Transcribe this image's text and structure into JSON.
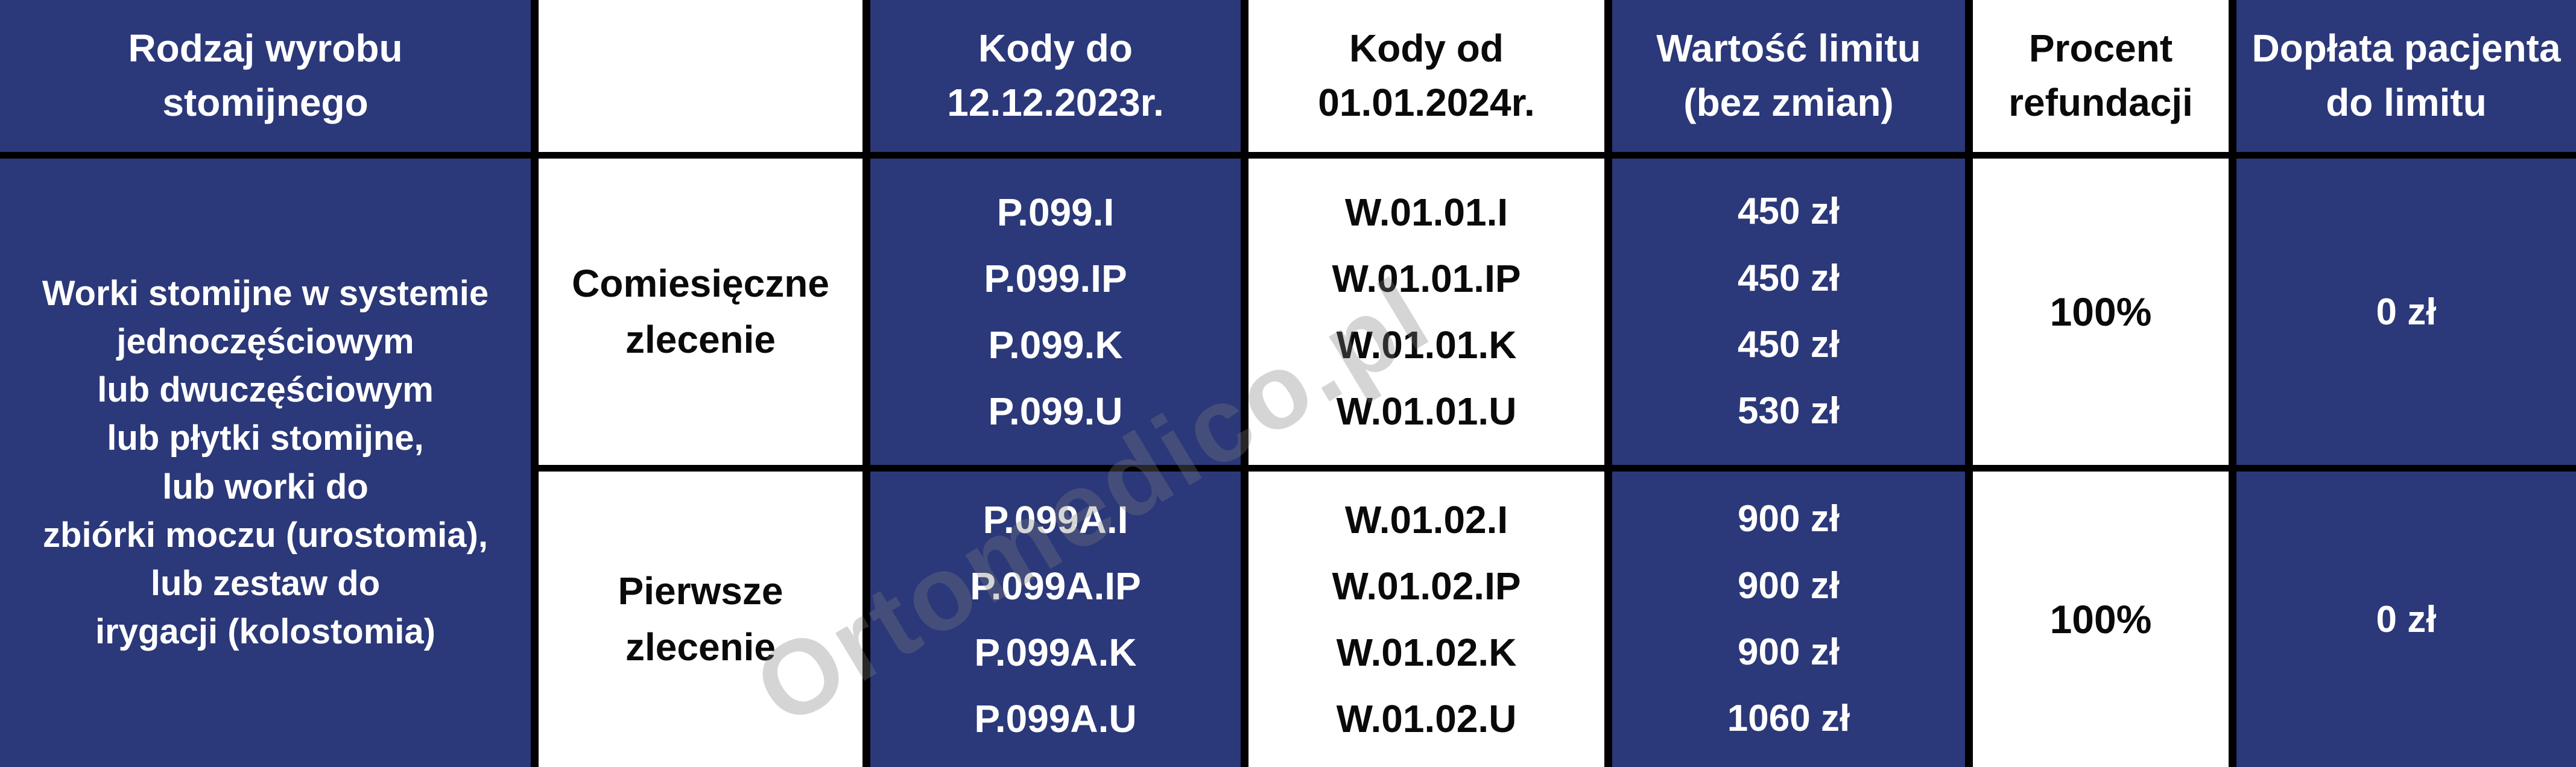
{
  "colors": {
    "navy": "#2b3879",
    "border": "#000000",
    "white": "#ffffff"
  },
  "watermark": "Ortomedico.pl",
  "header": {
    "product_type": "Rodzaj wyrobu\nstomijnego",
    "blank": "",
    "codes_until": "Kody do\n12.12.2023r.",
    "codes_from": "Kody od\n01.01.2024r.",
    "limit_value": "Wartość limitu\n(bez zmian)",
    "refund_percent": "Procent\nrefundacji",
    "patient_copay": "Dopłata pacjenta\ndo limitu"
  },
  "product": {
    "description": "Worki stomijne w systemie\njednoczęściowym\nlub dwuczęściowym\nlub płytki stomijne,\nlub worki do\nzbiórki moczu (urostomia),\nlub zestaw do\nirygacji (kolostomia)"
  },
  "rows": [
    {
      "order_type": "Comiesięczne\nzlecenie",
      "codes_until": "P.099.I\nP.099.IP\nP.099.K\nP.099.U",
      "codes_from": "W.01.01.I\nW.01.01.IP\nW.01.01.K\nW.01.01.U",
      "limit_values": "450 zł\n450 zł\n450 zł\n530 zł",
      "refund_percent": "100%",
      "patient_copay": "0 zł"
    },
    {
      "order_type": "Pierwsze\nzlecenie",
      "codes_until": "P.099A.I\nP.099A.IP\nP.099A.K\nP.099A.U",
      "codes_from": "W.01.02.I\nW.01.02.IP\nW.01.02.K\nW.01.02.U",
      "limit_values": "900 zł\n900 zł\n900 zł\n1060 zł",
      "refund_percent": "100%",
      "patient_copay": "0 zł"
    }
  ]
}
